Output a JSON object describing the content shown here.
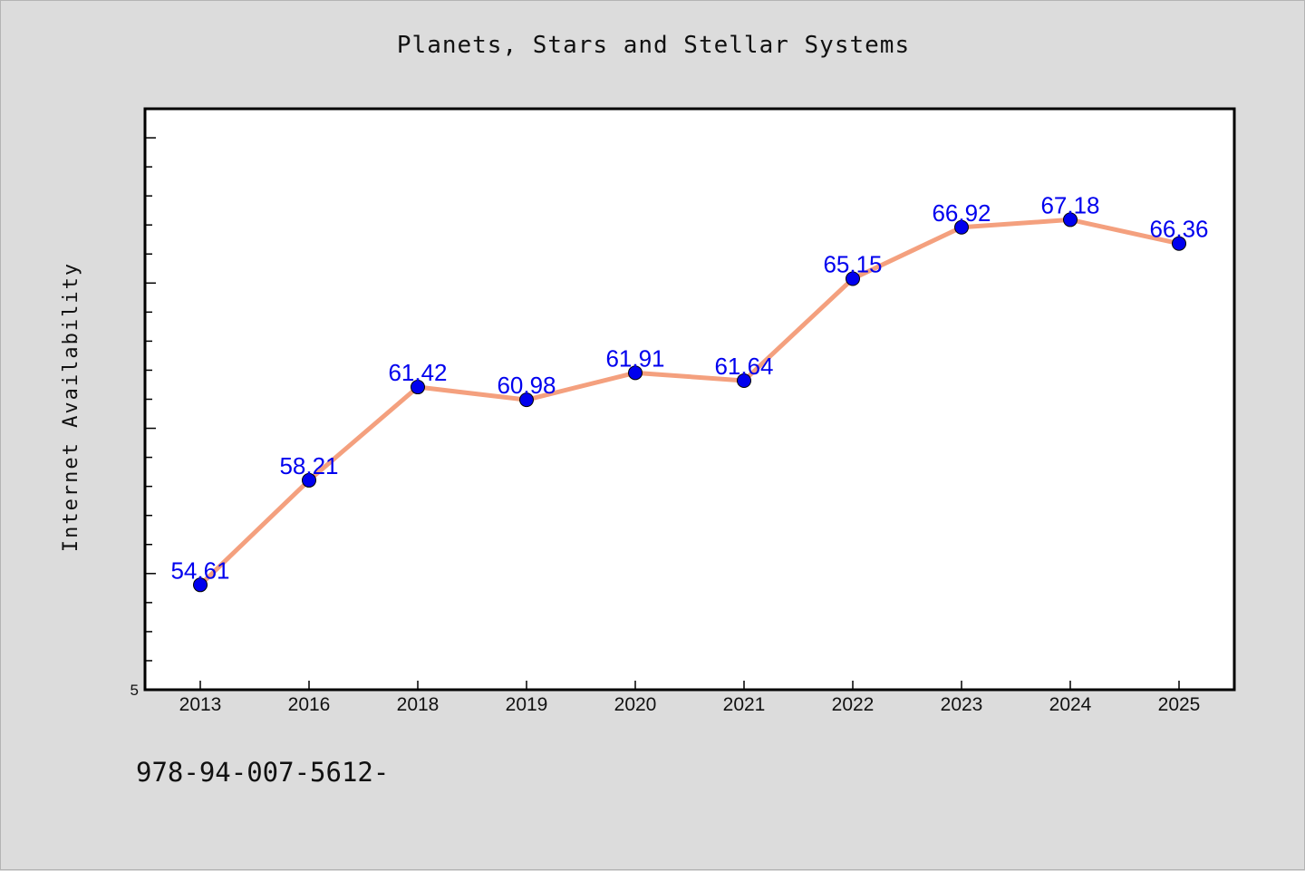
{
  "chart_data": {
    "type": "line",
    "title": "Planets, Stars and Stellar Systems",
    "xlabel": "",
    "ylabel": "Internet Availability",
    "categories": [
      "2013",
      "2016",
      "2018",
      "2019",
      "2020",
      "2021",
      "2022",
      "2023",
      "2024",
      "2025"
    ],
    "values": [
      54.61,
      58.21,
      61.42,
      60.98,
      61.91,
      61.64,
      65.15,
      66.92,
      67.18,
      66.36
    ],
    "data_labels": [
      "54.61",
      "58.21",
      "61.42",
      "60.98",
      "61.91",
      "61.64",
      "65.15",
      "66.92",
      "67.18",
      "66.36"
    ],
    "y_tick_labels": [
      "5"
    ],
    "ylim": [
      51.0,
      71.0
    ],
    "grid": false,
    "legend": "none",
    "colors": {
      "line": "#f4a07e",
      "marker": "#0000ee",
      "label": "#0000ee",
      "plot_background": "#ffffff",
      "figure_background": "#dcdcdc"
    }
  },
  "footer_text": "978-94-007-5612-"
}
